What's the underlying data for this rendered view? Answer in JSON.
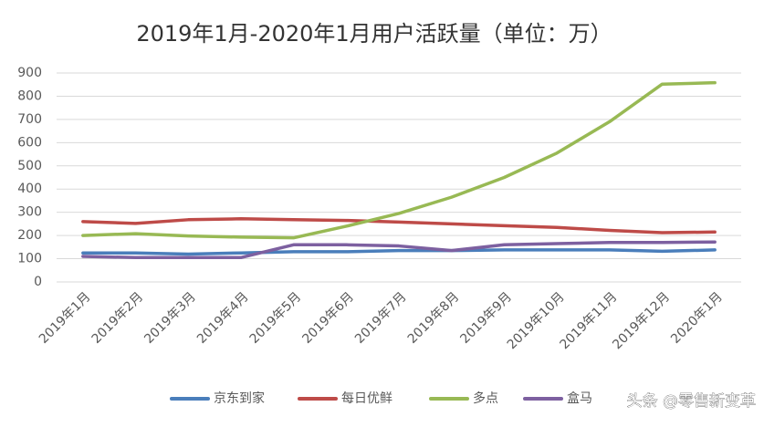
{
  "chart_data": {
    "type": "line",
    "title": "2019年1月-2020年1月用户活跃量（单位：万）",
    "categories": [
      "2019年1月",
      "2019年2月",
      "2019年3月",
      "2019年4月",
      "2019年5月",
      "2019年6月",
      "2019年7月",
      "2019年8月",
      "2019年9月",
      "2019年10月",
      "2019年11月",
      "2019年12月",
      "2020年1月"
    ],
    "series": [
      {
        "name": "京东到家",
        "color": "#4a7ebb",
        "values": [
          125,
          125,
          120,
          125,
          130,
          130,
          135,
          135,
          138,
          138,
          138,
          132,
          138
        ]
      },
      {
        "name": "每日优鲜",
        "color": "#be4b48",
        "values": [
          260,
          252,
          268,
          272,
          268,
          265,
          258,
          250,
          242,
          235,
          222,
          212,
          215
        ]
      },
      {
        "name": "多点",
        "color": "#98b954",
        "values": [
          200,
          208,
          198,
          193,
          190,
          240,
          295,
          365,
          450,
          555,
          690,
          852,
          858
        ]
      },
      {
        "name": "盒马",
        "color": "#7d60a0",
        "values": [
          110,
          105,
          105,
          105,
          160,
          160,
          155,
          135,
          160,
          165,
          170,
          170,
          172
        ]
      }
    ],
    "ylim": [
      0,
      900
    ],
    "yticks": [
      0,
      100,
      200,
      300,
      400,
      500,
      600,
      700,
      800,
      900
    ],
    "grid": true,
    "legend": "bottom",
    "watermark": "头条 @零售新变革"
  }
}
